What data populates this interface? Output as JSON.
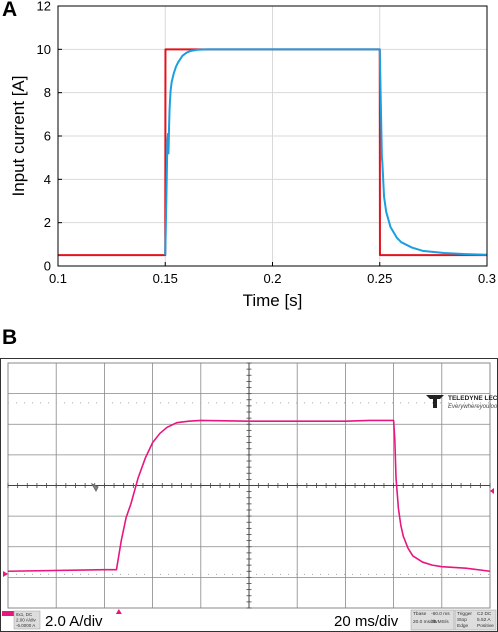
{
  "panel_a": {
    "letter": "A",
    "chart_data": {
      "type": "line",
      "title": "",
      "xlabel": "Time [s]",
      "ylabel": "Input current [A]",
      "xlim": [
        0.1,
        0.3
      ],
      "ylim": [
        0,
        12
      ],
      "xticks": [
        0.1,
        0.15,
        0.2,
        0.25,
        0.3
      ],
      "xtick_labels": [
        "0.1",
        "0.15",
        "0.2",
        "0.25",
        "0.3"
      ],
      "yticks": [
        0,
        2,
        4,
        6,
        8,
        10,
        12
      ],
      "ytick_labels": [
        "0",
        "2",
        "4",
        "6",
        "8",
        "10",
        "12"
      ],
      "grid": true,
      "series": [
        {
          "color": "#e4131b",
          "x": [
            0.1,
            0.15,
            0.1501,
            0.25,
            0.2501,
            0.3
          ],
          "y": [
            0.5,
            0.5,
            10,
            10,
            0.5,
            0.5
          ]
        },
        {
          "color": "#1a9fe0",
          "x": [
            0.15,
            0.1505,
            0.151,
            0.1513,
            0.1515,
            0.1518,
            0.152,
            0.1522,
            0.1525,
            0.153,
            0.154,
            0.155,
            0.156,
            0.158,
            0.16,
            0.162,
            0.165,
            0.17,
            0.2,
            0.25,
            0.2505,
            0.251,
            0.2512,
            0.2515,
            0.2518,
            0.252,
            0.253,
            0.255,
            0.258,
            0.26,
            0.265,
            0.27,
            0.28,
            0.29,
            0.3
          ],
          "y": [
            0.5,
            3.0,
            5.8,
            6.1,
            5.2,
            6.5,
            7.2,
            7.6,
            8.1,
            8.5,
            8.9,
            9.2,
            9.4,
            9.7,
            9.85,
            9.93,
            9.98,
            10,
            10,
            10,
            7.5,
            5.0,
            4.8,
            4.2,
            3.6,
            3.2,
            2.5,
            1.8,
            1.3,
            1.1,
            0.85,
            0.7,
            0.6,
            0.55,
            0.52
          ]
        }
      ]
    }
  },
  "panel_b": {
    "letter": "B",
    "logo_brand": "TELEDYNE LECROY",
    "logo_tagline": "Everywhereyoulook",
    "vertical_scale": "2.0 A/div",
    "time_scale": "20 ms/div",
    "channel_box": [
      "8x1, DC",
      "2.00 A/div",
      "-6.0000 A"
    ],
    "tbase_box": [
      "Tbase",
      "-60.0 ms",
      "20.0 ms/div",
      "25 MS/s"
    ],
    "trigger_box": [
      "Trigger",
      "C2 DC",
      "Stop",
      "5.52 A",
      "Edge",
      "Positive"
    ],
    "colors": {
      "trace": "#e8177f",
      "grid": "#888888",
      "frame": "#333333"
    },
    "chart_data": {
      "type": "line",
      "xlabel": "",
      "ylabel": "",
      "grid": true,
      "divisions": {
        "x": 10,
        "y": 8
      },
      "units": {
        "x": "ms",
        "y": "A"
      },
      "xlim": [
        -160,
        40
      ],
      "ylim": [
        -14,
        2
      ],
      "series": [
        {
          "color": "#e8177f",
          "x": [
            -160,
            -120,
            -115,
            -113,
            -111,
            -109,
            -106,
            -103,
            -100,
            -97,
            -94,
            -90,
            -85,
            -80,
            -60,
            -40,
            -20,
            -10,
            0,
            0.5,
            1,
            2,
            3,
            4,
            6,
            8,
            12,
            16,
            20,
            30,
            40
          ],
          "y": [
            -11.6,
            -11.5,
            -11.5,
            -9.6,
            -8.1,
            -7.2,
            -5.5,
            -4.2,
            -3.2,
            -2.6,
            -2.2,
            -1.9,
            -1.8,
            -1.75,
            -1.8,
            -1.8,
            -1.8,
            -1.75,
            -1.75,
            -3.0,
            -5.5,
            -7.5,
            -8.6,
            -9.3,
            -10.1,
            -10.6,
            -11.0,
            -11.2,
            -11.3,
            -11.4,
            -11.6
          ]
        }
      ]
    }
  }
}
